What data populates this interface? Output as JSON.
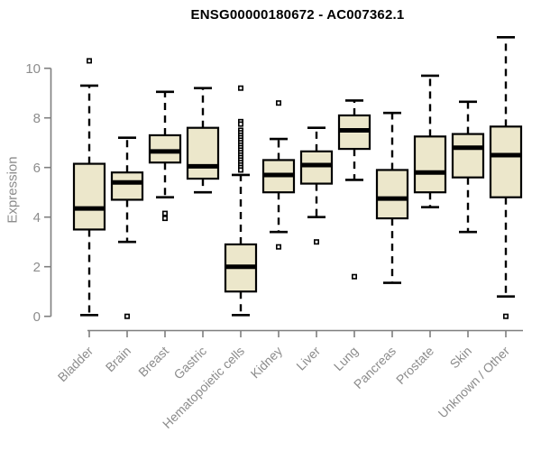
{
  "colors": {
    "box_fill": "#ece7cb",
    "box_border": "#000000",
    "median": "#000000",
    "whisker": "#000000",
    "axis": "#7f7f7f",
    "tick_text": "#8c8c8c",
    "title_text": "#000000",
    "background": "#ffffff"
  },
  "chart_data": {
    "type": "boxplot",
    "title": "ENSG00000180672 - AC007362.1",
    "xlabel": "",
    "ylabel": "Expression",
    "ylim": [
      0,
      10
    ],
    "yticks": [
      0,
      2,
      4,
      6,
      8,
      10
    ],
    "grid": false,
    "legend": false,
    "categories": [
      "Bladder",
      "Brain",
      "Breast",
      "Gastric",
      "Hematopoietic cells",
      "Kidney",
      "Liver",
      "Lung",
      "Pancreas",
      "Prostate",
      "Skin",
      "Unknown / Other"
    ],
    "series": [
      {
        "category": "Bladder",
        "low": 0.05,
        "q1": 3.5,
        "median": 4.35,
        "q3": 6.15,
        "high": 9.3,
        "outliers": [
          10.3
        ]
      },
      {
        "category": "Brain",
        "low": 3.0,
        "q1": 4.7,
        "median": 5.4,
        "q3": 5.8,
        "high": 7.2,
        "outliers": [
          0.0
        ]
      },
      {
        "category": "Breast",
        "low": 4.8,
        "q1": 6.2,
        "median": 6.65,
        "q3": 7.3,
        "high": 9.05,
        "outliers": [
          4.15,
          3.95
        ]
      },
      {
        "category": "Gastric",
        "low": 5.0,
        "q1": 5.55,
        "median": 6.05,
        "q3": 7.6,
        "high": 9.2,
        "outliers": []
      },
      {
        "category": "Hematopoietic cells",
        "low": 0.05,
        "q1": 1.0,
        "median": 2.0,
        "q3": 2.9,
        "high": 5.7,
        "outliers": [
          9.2,
          7.85,
          7.75,
          7.5,
          7.4,
          7.3,
          7.2,
          7.1,
          7.0,
          6.9,
          6.8,
          6.7,
          6.6,
          6.5,
          6.4,
          6.3,
          6.2,
          6.1,
          6.0,
          5.9
        ]
      },
      {
        "category": "Kidney",
        "low": 3.4,
        "q1": 5.0,
        "median": 5.7,
        "q3": 6.3,
        "high": 7.15,
        "outliers": [
          8.6,
          2.8
        ]
      },
      {
        "category": "Liver",
        "low": 4.0,
        "q1": 5.35,
        "median": 6.1,
        "q3": 6.65,
        "high": 7.6,
        "outliers": [
          3.0
        ]
      },
      {
        "category": "Lung",
        "low": 5.5,
        "q1": 6.75,
        "median": 7.5,
        "q3": 8.1,
        "high": 8.7,
        "outliers": [
          1.6
        ]
      },
      {
        "category": "Pancreas",
        "low": 1.35,
        "q1": 3.95,
        "median": 4.75,
        "q3": 5.9,
        "high": 8.2,
        "outliers": []
      },
      {
        "category": "Prostate",
        "low": 4.4,
        "q1": 5.0,
        "median": 5.8,
        "q3": 7.25,
        "high": 9.7,
        "outliers": []
      },
      {
        "category": "Skin",
        "low": 3.4,
        "q1": 5.6,
        "median": 6.8,
        "q3": 7.35,
        "high": 8.65,
        "outliers": []
      },
      {
        "category": "Unknown / Other",
        "low": 0.8,
        "q1": 4.8,
        "median": 6.5,
        "q3": 7.65,
        "high": 11.25,
        "outliers": [
          0.0
        ]
      }
    ]
  }
}
